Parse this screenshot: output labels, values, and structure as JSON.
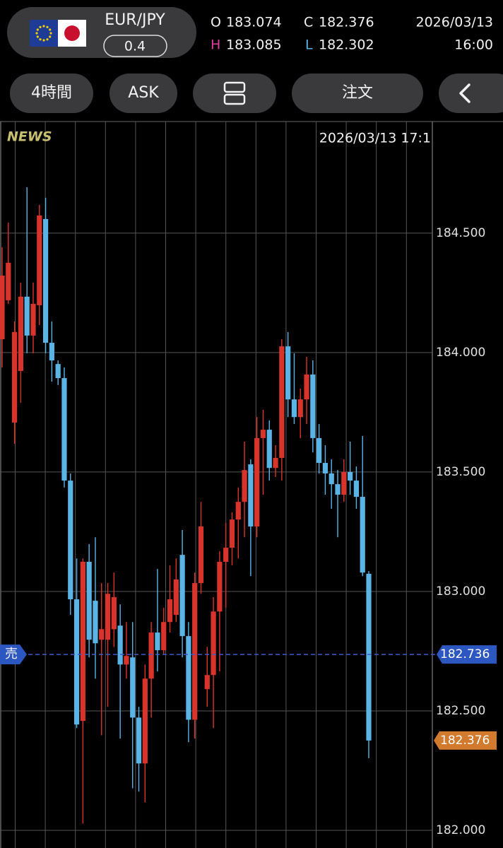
{
  "header": {
    "pair": "EUR/JPY",
    "spread": "0.4",
    "labels": {
      "open": "O",
      "high": "H",
      "low": "L",
      "close": "C"
    },
    "date": "2026/03/13",
    "time": "16:00"
  },
  "toolbar": {
    "timeframe": "4時間",
    "side": "ASK",
    "order": "注文"
  },
  "chart_data": {
    "type": "candlestick",
    "news_label": "NEWS",
    "timestamp": "2026/03/13 17:1",
    "up_color": "#d9342b",
    "down_color": "#5ab4e6",
    "open": [
      184.056,
      184.219,
      183.707,
      183.923,
      184.234,
      184.071,
      184.198,
      184.559,
      184.041,
      183.952,
      183.893,
      183.464,
      182.967,
      182.458,
      183.124,
      182.961,
      182.798,
      182.798,
      182.842,
      182.857,
      182.694,
      182.724,
      182.472,
      182.28,
      182.635,
      182.828,
      182.754,
      182.872,
      182.902,
      183.153,
      182.813,
      182.463,
      183.035,
      182.591,
      182.65,
      182.916,
      183.124,
      183.183,
      183.301,
      183.375,
      183.532,
      183.272,
      183.642,
      183.677,
      183.517,
      183.559,
      184.026,
      183.804,
      183.73,
      183.804,
      183.908,
      183.642,
      183.538,
      183.494,
      183.449,
      183.405,
      183.5,
      183.464,
      183.396,
      183.074
    ],
    "high": [
      184.441,
      184.544,
      184.13,
      184.293,
      184.692,
      184.293,
      184.618,
      184.648,
      184.13,
      183.967,
      183.938,
      183.494,
      183.138,
      183.138,
      183.198,
      183.227,
      183.035,
      183.035,
      183.079,
      182.946,
      182.872,
      182.872,
      182.517,
      182.694,
      182.872,
      183.094,
      182.931,
      183.109,
      183.138,
      183.257,
      182.872,
      183.079,
      183.375,
      182.768,
      182.976,
      183.168,
      183.286,
      183.331,
      183.435,
      183.627,
      183.553,
      183.73,
      183.76,
      183.716,
      183.612,
      184.056,
      184.086,
      183.997,
      183.849,
      183.982,
      183.967,
      183.701,
      183.612,
      183.553,
      183.508,
      183.553,
      183.627,
      183.523,
      183.651,
      183.085
    ],
    "low": [
      183.938,
      184.204,
      183.618,
      183.79,
      183.997,
      183.997,
      184.115,
      183.997,
      183.878,
      183.864,
      183.435,
      182.902,
      182.428,
      182.028,
      182.724,
      182.635,
      182.398,
      182.517,
      182.768,
      182.384,
      182.635,
      182.176,
      182.162,
      182.117,
      182.472,
      182.665,
      182.739,
      182.828,
      182.872,
      182.724,
      182.369,
      182.384,
      182.99,
      182.517,
      182.428,
      182.665,
      182.931,
      183.109,
      183.138,
      183.227,
      183.064,
      183.227,
      183.405,
      183.464,
      183.479,
      183.464,
      183.73,
      183.701,
      183.642,
      183.701,
      183.582,
      183.494,
      183.405,
      183.346,
      183.227,
      183.375,
      183.405,
      183.346,
      183.064,
      182.302
    ],
    "close": [
      184.322,
      184.376,
      184.086,
      184.234,
      184.071,
      184.204,
      184.574,
      184.041,
      183.967,
      183.893,
      183.464,
      182.967,
      182.443,
      183.124,
      182.798,
      182.783,
      182.842,
      182.99,
      182.976,
      182.694,
      182.73,
      182.472,
      182.28,
      182.635,
      182.828,
      182.754,
      182.872,
      182.967,
      183.05,
      182.813,
      182.463,
      183.035,
      183.272,
      182.65,
      182.916,
      183.124,
      183.183,
      183.301,
      183.375,
      183.508,
      183.272,
      183.642,
      183.677,
      183.517,
      183.559,
      184.026,
      183.804,
      183.73,
      183.804,
      183.908,
      183.642,
      183.538,
      183.494,
      183.449,
      183.405,
      183.5,
      183.464,
      183.396,
      183.079,
      182.376
    ],
    "ylim": [
      181.926,
      184.967
    ],
    "yticks": [
      {
        "value": 182,
        "label": "182.000"
      },
      {
        "value": 182.5,
        "label": "182.500"
      },
      {
        "value": 183,
        "label": "183.000"
      },
      {
        "value": 183.5,
        "label": "183.500"
      },
      {
        "value": 184,
        "label": "184.000"
      },
      {
        "value": 184.5,
        "label": "184.500"
      }
    ],
    "grid": true,
    "bid_price": 182.736,
    "bid_label": "売"
  }
}
